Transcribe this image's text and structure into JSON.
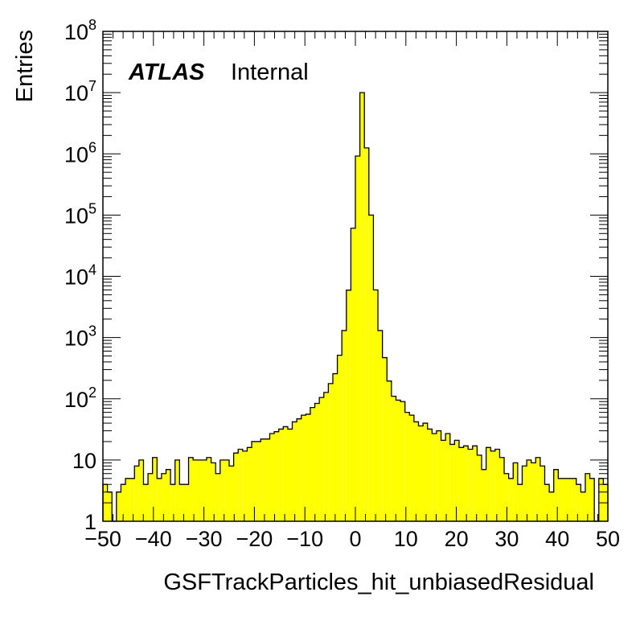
{
  "chart_data": {
    "type": "histogram",
    "xlabel": "GSFTrackParticles_hit_unbiasedResidual",
    "ylabel": "Entries",
    "label": {
      "bold": "ATLAS",
      "text": "Internal"
    },
    "xlim": [
      -50,
      50
    ],
    "ylim": [
      1,
      100000000
    ],
    "y_scale": "log",
    "fill_color": "#ffff00",
    "line_color": "#000000",
    "bin_width": 1,
    "x_ticks": [
      {
        "value": -50,
        "label": "−50"
      },
      {
        "value": -40,
        "label": "−40"
      },
      {
        "value": -30,
        "label": "−30"
      },
      {
        "value": -20,
        "label": "−20"
      },
      {
        "value": -10,
        "label": "−10"
      },
      {
        "value": 0,
        "label": "0"
      },
      {
        "value": 10,
        "label": "10"
      },
      {
        "value": 20,
        "label": "20"
      },
      {
        "value": 30,
        "label": "30"
      },
      {
        "value": 40,
        "label": "40"
      },
      {
        "value": 50,
        "label": "50"
      }
    ],
    "y_ticks": [
      {
        "value": 1,
        "base": "1",
        "exp": ""
      },
      {
        "value": 10,
        "base": "10",
        "exp": ""
      },
      {
        "value": 100,
        "base": "10",
        "exp": "2"
      },
      {
        "value": 1000,
        "base": "10",
        "exp": "3"
      },
      {
        "value": 10000,
        "base": "10",
        "exp": "4"
      },
      {
        "value": 100000,
        "base": "10",
        "exp": "5"
      },
      {
        "value": 1000000,
        "base": "10",
        "exp": "6"
      },
      {
        "value": 10000000,
        "base": "10",
        "exp": "7"
      },
      {
        "value": 100000000,
        "base": "10",
        "exp": "8"
      }
    ],
    "bin_edges_start": -50,
    "values": [
      4,
      3,
      0,
      3,
      4,
      5,
      5,
      8,
      10,
      4,
      6,
      11,
      5,
      6,
      7,
      4,
      10,
      4,
      4,
      11,
      10,
      10,
      10,
      11,
      9,
      6,
      10,
      10,
      8,
      13,
      15,
      14,
      16,
      20,
      20,
      22,
      22,
      27,
      29,
      32,
      35,
      32,
      42,
      47,
      54,
      56,
      72,
      84,
      105,
      127,
      177,
      257,
      514,
      1300,
      5950,
      61000,
      920000,
      10000000,
      1250000,
      100000,
      6000,
      1300,
      470,
      195,
      110,
      95,
      90,
      60,
      54,
      42,
      36,
      40,
      32,
      27,
      30,
      21,
      27,
      18,
      21,
      16,
      17,
      15,
      17,
      12,
      7,
      16,
      14,
      15,
      11,
      6,
      5,
      9,
      4,
      8,
      10,
      9,
      11,
      8,
      4,
      3,
      7,
      5,
      5,
      5,
      5,
      4,
      3,
      6,
      5,
      1,
      5,
      4
    ]
  }
}
